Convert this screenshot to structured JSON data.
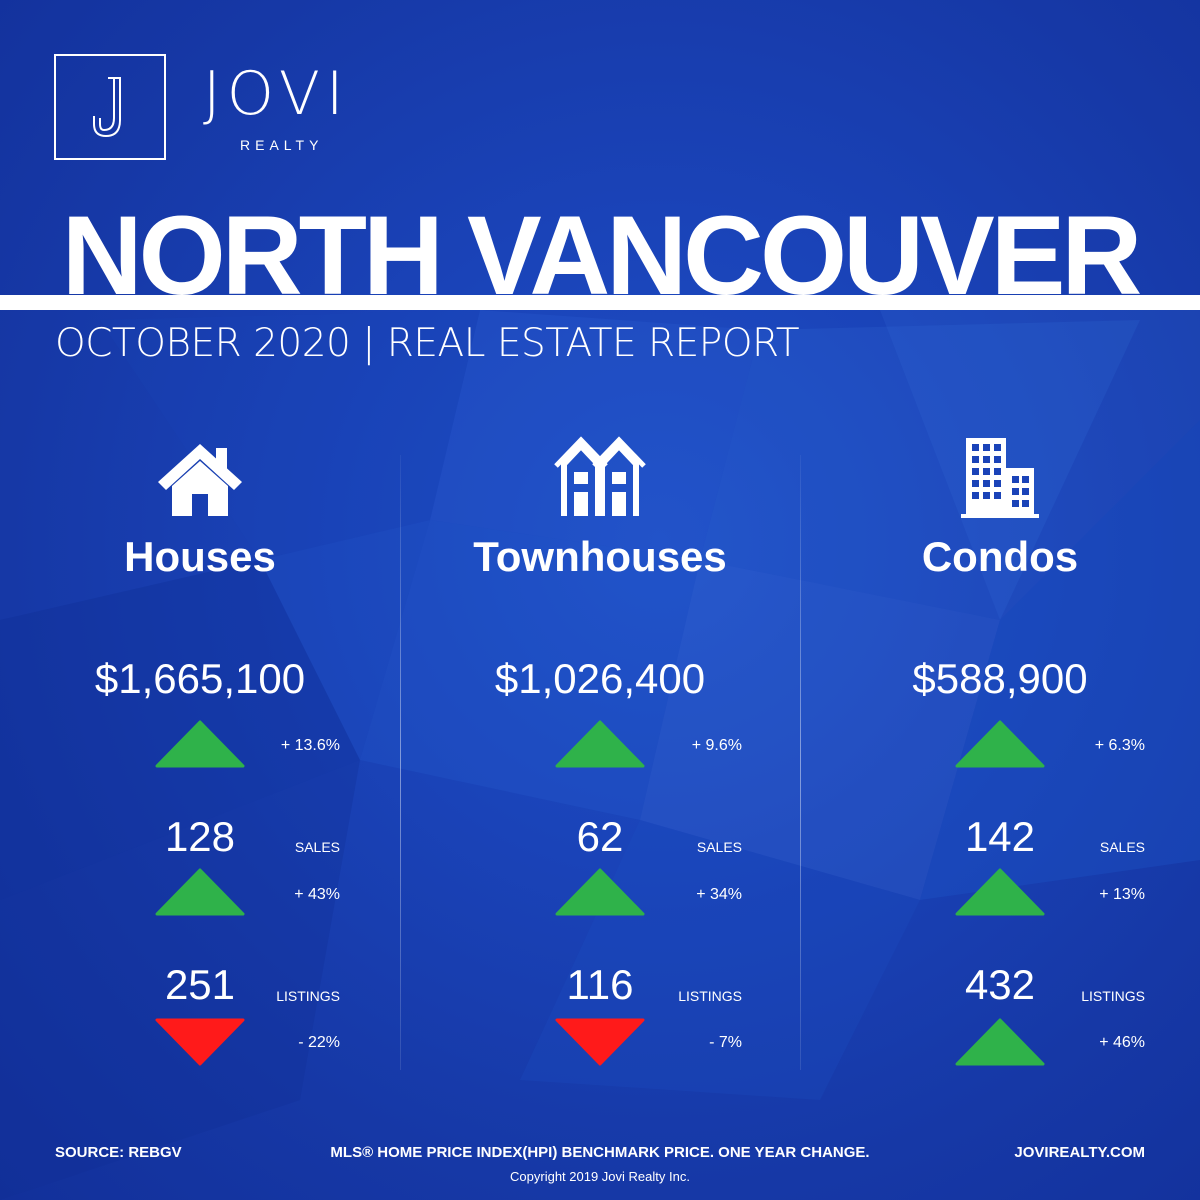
{
  "brand": {
    "name": "JOVI",
    "sub": "REALTY",
    "monogram": "J"
  },
  "title": "NORTH VANCOUVER",
  "subtitle": "OCTOBER 2020 | REAL ESTATE REPORT",
  "colors": {
    "background": "#1a43b8",
    "up": "#2fb24a",
    "down": "#ff1a1a",
    "text": "#ffffff"
  },
  "columns": [
    {
      "icon": "house-icon",
      "name": "Houses",
      "price": "$1,665,100",
      "price_change": {
        "text": "+ 13.6%",
        "direction": "up"
      },
      "sales": {
        "value": "128",
        "label": "SALES",
        "change": "+ 43%",
        "direction": "up"
      },
      "listings": {
        "value": "251",
        "label": "LISTINGS",
        "change": "- 22%",
        "direction": "down"
      }
    },
    {
      "icon": "townhouse-icon",
      "name": "Townhouses",
      "price": "$1,026,400",
      "price_change": {
        "text": "+ 9.6%",
        "direction": "up"
      },
      "sales": {
        "value": "62",
        "label": "SALES",
        "change": "+ 34%",
        "direction": "up"
      },
      "listings": {
        "value": "116",
        "label": "LISTINGS",
        "change": "- 7%",
        "direction": "down"
      }
    },
    {
      "icon": "condo-building-icon",
      "name": "Condos",
      "price": "$588,900",
      "price_change": {
        "text": "+ 6.3%",
        "direction": "up"
      },
      "sales": {
        "value": "142",
        "label": "SALES",
        "change": "+ 13%",
        "direction": "up"
      },
      "listings": {
        "value": "432",
        "label": "LISTINGS",
        "change": "+ 46%",
        "direction": "up"
      }
    }
  ],
  "footer": {
    "source": "SOURCE:  REBGV",
    "note": "MLS® HOME PRICE INDEX(HPI) BENCHMARK PRICE. ONE YEAR CHANGE.",
    "website": "JOVIREALTY.COM",
    "copyright": "Copyright 2019 Jovi Realty Inc."
  }
}
